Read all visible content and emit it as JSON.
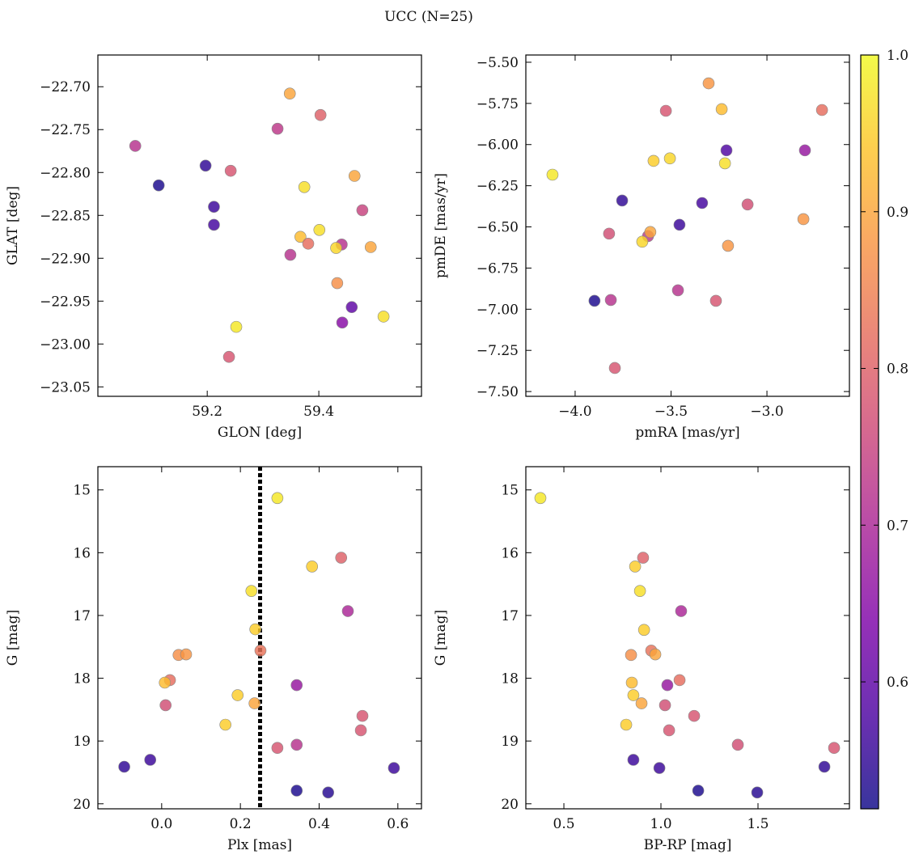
{
  "title": "UCC (N=25)",
  "chart_data": [
    {
      "type": "scatter",
      "xlabel": "GLON [deg]",
      "ylabel": "GLAT [deg]",
      "xlim": [
        59.004,
        59.584
      ],
      "ylim": [
        -23.061,
        -22.663
      ],
      "xticks": [
        59.2,
        59.4
      ],
      "yticks": [
        {
          "value": -22.7,
          "label": "−22.70"
        },
        {
          "value": -22.75,
          "label": "−22.75"
        },
        {
          "value": -22.8,
          "label": "−22.80"
        },
        {
          "value": -22.85,
          "label": "−22.85"
        },
        {
          "value": -22.9,
          "label": "−22.90"
        },
        {
          "value": -22.95,
          "label": "−22.95"
        },
        {
          "value": -23.0,
          "label": "−23.00"
        },
        {
          "value": -23.05,
          "label": "−23.05"
        }
      ],
      "x": [
        59.348,
        59.403,
        59.326,
        59.071,
        59.197,
        59.242,
        59.113,
        59.464,
        59.374,
        59.212,
        59.478,
        59.212,
        59.401,
        59.367,
        59.381,
        59.441,
        59.431,
        59.493,
        59.349,
        59.433,
        59.459,
        59.516,
        59.442,
        59.252,
        59.239
      ],
      "y": [
        -22.708,
        -22.733,
        -22.749,
        -22.769,
        -22.792,
        -22.798,
        -22.815,
        -22.804,
        -22.817,
        -22.84,
        -22.844,
        -22.861,
        -22.867,
        -22.875,
        -22.883,
        -22.884,
        -22.888,
        -22.887,
        -22.896,
        -22.929,
        -22.957,
        -22.968,
        -22.975,
        -22.98,
        -23.015
      ],
      "c": [
        0.9,
        0.8,
        0.73,
        0.72,
        0.55,
        0.78,
        0.53,
        0.9,
        0.97,
        0.56,
        0.75,
        0.57,
        0.97,
        0.93,
        0.82,
        0.72,
        0.96,
        0.9,
        0.72,
        0.87,
        0.6,
        0.97,
        0.65,
        0.98,
        0.78
      ]
    },
    {
      "type": "scatter",
      "xlabel": "pmRA [mas/yr]",
      "ylabel": "pmDE [mas/yr]",
      "xlim": [
        -4.257,
        -2.57
      ],
      "ylim": [
        -7.529,
        -5.456
      ],
      "xticks": [
        {
          "value": -4.0,
          "label": "−4.0"
        },
        {
          "value": -3.5,
          "label": "−3.5"
        },
        {
          "value": -3.0,
          "label": "−3.0"
        }
      ],
      "yticks": [
        {
          "value": -5.5,
          "label": "−5.50"
        },
        {
          "value": -5.75,
          "label": "−5.75"
        },
        {
          "value": -6.0,
          "label": "−6.00"
        },
        {
          "value": -6.25,
          "label": "−6.25"
        },
        {
          "value": -6.5,
          "label": "−6.50"
        },
        {
          "value": -6.75,
          "label": "−6.75"
        },
        {
          "value": -7.0,
          "label": "−7.00"
        },
        {
          "value": -7.25,
          "label": "−7.25"
        },
        {
          "value": -7.5,
          "label": "−7.50"
        }
      ],
      "x": [
        -3.304,
        -3.527,
        -3.236,
        -2.713,
        -3.211,
        -2.802,
        -4.118,
        -3.591,
        -3.506,
        -3.219,
        -3.755,
        -3.338,
        -3.101,
        -2.81,
        -3.456,
        -3.823,
        -3.62,
        -3.608,
        -3.65,
        -3.203,
        -3.464,
        -3.899,
        -3.814,
        -3.266,
        -3.793
      ],
      "y": [
        -5.628,
        -5.795,
        -5.785,
        -5.79,
        -6.035,
        -6.035,
        -6.183,
        -6.099,
        -6.084,
        -6.114,
        -6.34,
        -6.355,
        -6.364,
        -6.453,
        -6.487,
        -6.541,
        -6.556,
        -6.531,
        -6.59,
        -6.615,
        -6.885,
        -6.949,
        -6.944,
        -6.949,
        -7.357
      ],
      "c": [
        0.88,
        0.78,
        0.93,
        0.82,
        0.58,
        0.67,
        0.98,
        0.95,
        0.96,
        0.97,
        0.55,
        0.57,
        0.77,
        0.88,
        0.56,
        0.77,
        0.73,
        0.9,
        0.96,
        0.88,
        0.72,
        0.53,
        0.72,
        0.78,
        0.78
      ]
    },
    {
      "type": "scatter",
      "xlabel": "Plx [mas]",
      "ylabel": "G [mag]",
      "xlim": [
        -0.162,
        0.66
      ],
      "ylim": [
        20.08,
        14.63
      ],
      "xticks": [
        {
          "value": 0.0,
          "label": "0.0"
        },
        0.2,
        0.4,
        0.6
      ],
      "yticks": [
        15,
        16,
        17,
        18,
        19,
        20
      ],
      "vline": 0.25,
      "x": [
        0.294,
        0.456,
        0.382,
        0.228,
        0.473,
        0.238,
        0.251,
        0.043,
        0.062,
        0.021,
        0.008,
        0.343,
        0.193,
        0.01,
        0.236,
        0.51,
        0.162,
        0.506,
        0.343,
        0.294,
        -0.029,
        -0.095,
        0.59,
        0.343,
        0.423
      ],
      "y": [
        15.13,
        16.08,
        16.22,
        16.61,
        16.93,
        17.22,
        17.56,
        17.63,
        17.62,
        18.03,
        18.07,
        18.11,
        18.27,
        18.43,
        18.4,
        18.6,
        18.74,
        18.83,
        19.06,
        19.11,
        19.3,
        19.41,
        19.43,
        19.79,
        19.82
      ],
      "c": [
        0.98,
        0.8,
        0.95,
        0.97,
        0.7,
        0.95,
        0.83,
        0.87,
        0.88,
        0.82,
        0.93,
        0.67,
        0.95,
        0.77,
        0.9,
        0.78,
        0.95,
        0.78,
        0.72,
        0.78,
        0.56,
        0.55,
        0.56,
        0.53,
        0.54
      ]
    },
    {
      "type": "scatter",
      "xlabel": "BP-RP [mag]",
      "ylabel": "G [mag]",
      "xlim": [
        0.304,
        1.971
      ],
      "ylim": [
        20.08,
        14.63
      ],
      "xticks": [
        0.5,
        {
          "value": 1.0,
          "label": "1.0"
        },
        1.5
      ],
      "yticks": [
        15,
        16,
        17,
        18,
        19,
        20
      ],
      "x": [
        0.379,
        0.908,
        0.867,
        0.892,
        1.104,
        0.913,
        0.95,
        0.846,
        0.971,
        1.096,
        0.85,
        1.033,
        0.858,
        1.021,
        0.9,
        1.171,
        0.821,
        1.042,
        1.396,
        1.892,
        0.858,
        1.842,
        0.992,
        1.192,
        1.496
      ],
      "y": [
        15.13,
        16.08,
        16.22,
        16.61,
        16.93,
        17.23,
        17.56,
        17.63,
        17.62,
        18.03,
        18.07,
        18.11,
        18.27,
        18.43,
        18.4,
        18.6,
        18.74,
        18.83,
        19.06,
        19.11,
        19.3,
        19.41,
        19.43,
        19.79,
        19.82
      ],
      "c": [
        0.98,
        0.8,
        0.95,
        0.97,
        0.7,
        0.95,
        0.83,
        0.87,
        0.9,
        0.82,
        0.93,
        0.67,
        0.95,
        0.77,
        0.9,
        0.78,
        0.95,
        0.78,
        0.77,
        0.78,
        0.56,
        0.55,
        0.56,
        0.53,
        0.54
      ]
    },
    {
      "type": "colorbar",
      "colormap": "plasma",
      "clim": [
        0.519,
        1.0
      ],
      "ticks": [
        0.6,
        0.7,
        0.8,
        0.9,
        {
          "value": 1.0,
          "label": "1.0"
        }
      ]
    }
  ]
}
